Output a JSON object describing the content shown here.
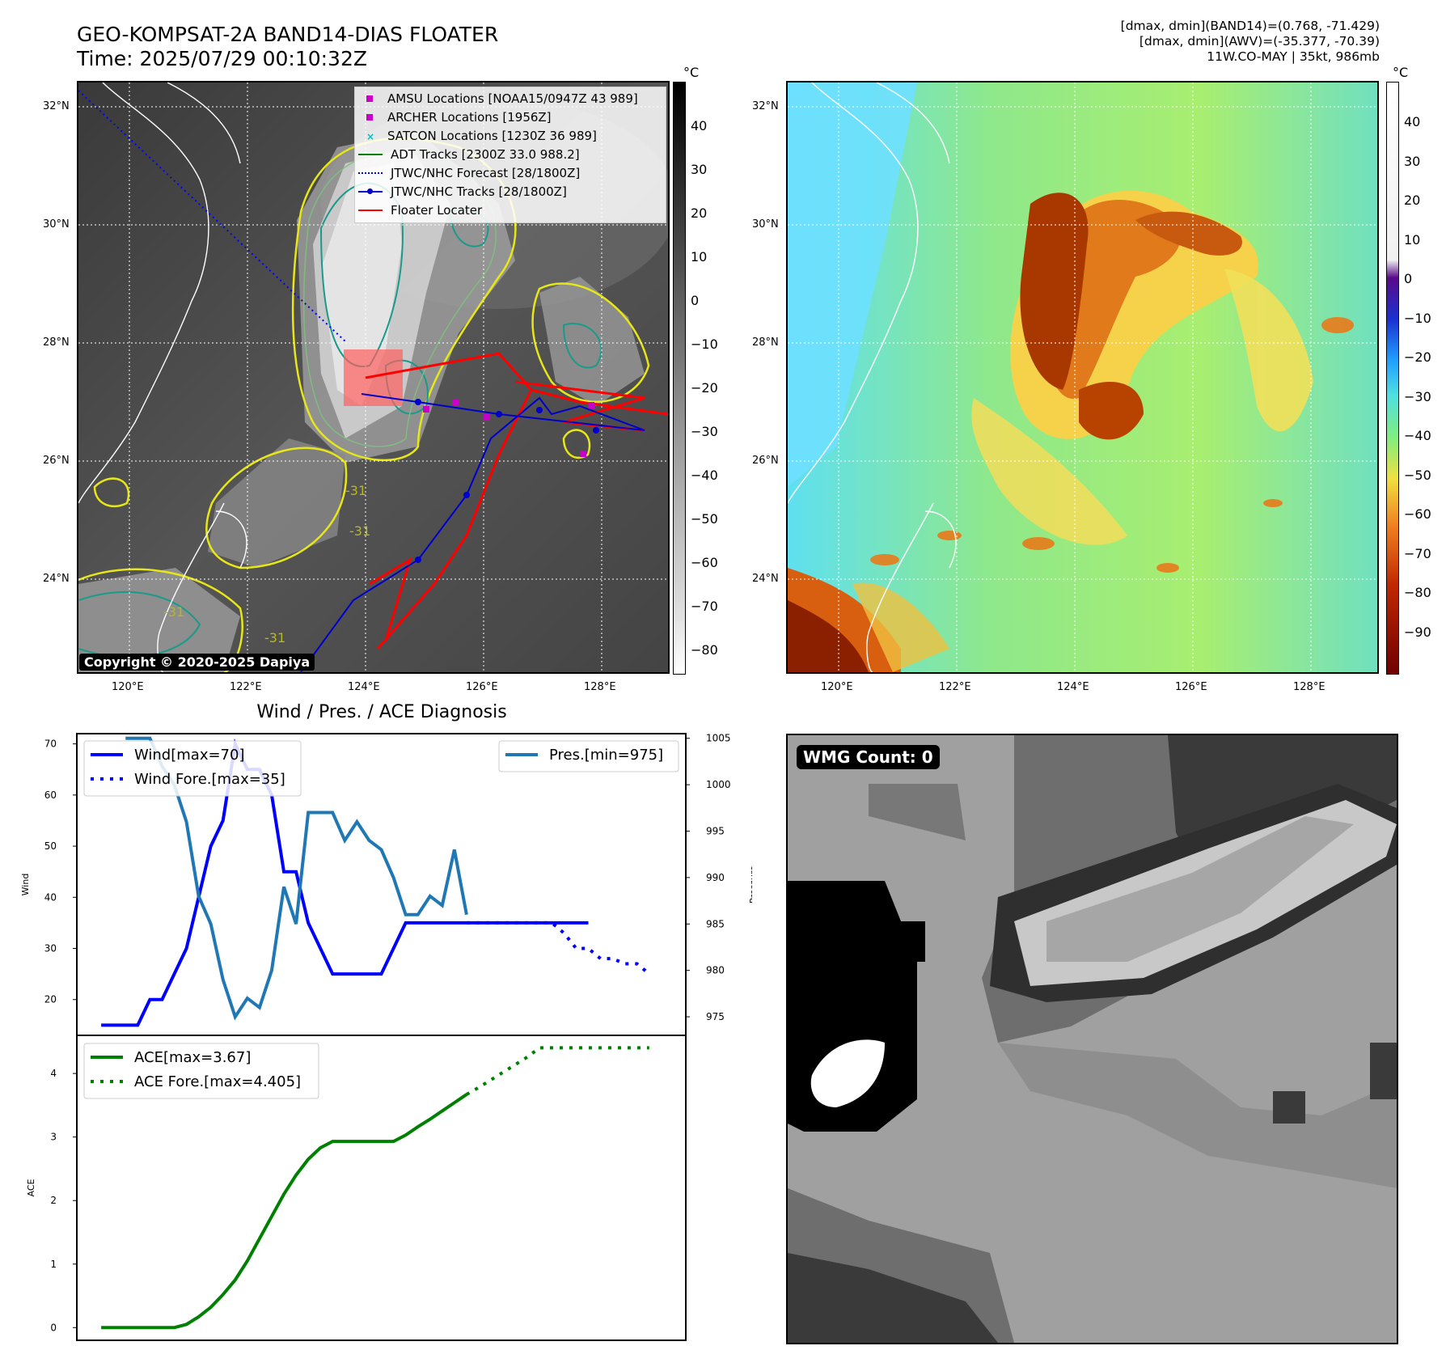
{
  "header": {
    "title_line1": "GEO-KOMPSAT-2A BAND14-DIAS FLOATER",
    "title_line2": "Time: 2025/07/29 00:10:32Z",
    "right_line1": "[dmax, dmin](BAND14)=(0.768, -71.429)",
    "right_line2": "[dmax, dmin](AWV)=(-35.377, -70.39)",
    "right_line3": "11W.CO-MAY | 35kt, 986mb"
  },
  "map": {
    "lat_labels": [
      "32°N",
      "30°N",
      "28°N",
      "26°N",
      "24°N"
    ],
    "lon_labels": [
      "120°E",
      "122°E",
      "124°E",
      "126°E",
      "128°E"
    ],
    "copyright": "Copyright © 2020-2025 Dapiya",
    "contour_labels": [
      "-31",
      "-31",
      "-31",
      "-31"
    ]
  },
  "legend": {
    "amsu": "AMSU Locations [NOAA15/0947Z 43 989]",
    "archer": "ARCHER Locations [1956Z]",
    "satcon": "SATCON Locations [1230Z 36 989]",
    "adt": "ADT Tracks [2300Z 33.0 988.2]",
    "forecast": "JTWC/NHC Forecast [28/1800Z]",
    "tracks": "JTWC/NHC Tracks [28/1800Z]",
    "floater": "Floater Locater"
  },
  "colorbar_gray": {
    "unit": "°C",
    "ticks": [
      "40",
      "30",
      "20",
      "10",
      "0",
      "−10",
      "−20",
      "−30",
      "−40",
      "−50",
      "−60",
      "−70",
      "−80"
    ]
  },
  "colorbar_color": {
    "unit": "°C",
    "ticks": [
      "40",
      "30",
      "20",
      "10",
      "0",
      "−10",
      "−20",
      "−30",
      "−40",
      "−50",
      "−60",
      "−70",
      "−80",
      "−90"
    ]
  },
  "wmg": {
    "label": "WMG Count: 0"
  },
  "colors": {
    "wind": "#0000ff",
    "pressure": "#1f77b4",
    "ace": "#008000",
    "floater": "#ff0000",
    "adt": "#008000",
    "amsu": "#bf00bf",
    "satcon": "#00bfbf"
  },
  "chart_data": [
    {
      "type": "line",
      "title": "Wind / Pres. / ACE Diagnosis",
      "ylabel": "Wind",
      "ylabel_right": "Pressure",
      "ylim": [
        13,
        72
      ],
      "ylim_right": [
        973,
        1005.5
      ],
      "yticks": [
        20,
        30,
        40,
        50,
        60,
        70
      ],
      "yticks_right": [
        975,
        980,
        985,
        990,
        995,
        1000,
        1005
      ],
      "legend_left": [
        "Wind[max=70]",
        "Wind Fore.[max=35]"
      ],
      "legend_right": [
        "Pres.[min=975]"
      ],
      "series": [
        {
          "name": "Wind[max=70]",
          "axis": "left",
          "x": [
            0,
            2,
            3,
            4,
            5,
            6,
            7,
            8,
            9,
            10,
            11,
            12,
            13,
            14,
            15,
            16,
            17,
            18,
            19,
            20,
            21,
            22,
            23,
            24,
            25,
            26,
            27,
            28,
            29,
            30,
            31,
            32,
            33,
            34,
            35,
            36,
            37,
            38,
            39,
            40
          ],
          "values": [
            15,
            15,
            15,
            20,
            20,
            25,
            30,
            40,
            50,
            55,
            70,
            65,
            65,
            60,
            45,
            45,
            35,
            30,
            25,
            25,
            25,
            25,
            25,
            30,
            35,
            35,
            35,
            35,
            35,
            35,
            35,
            35,
            35,
            35,
            35,
            35,
            35,
            35,
            35,
            35
          ]
        },
        {
          "name": "Wind Fore.[max=35]",
          "axis": "left",
          "style": "dotted",
          "x": [
            30,
            31,
            32,
            33,
            34,
            35,
            36,
            37,
            38,
            39,
            40,
            41,
            42,
            43,
            44,
            45
          ],
          "values": [
            35,
            35,
            35,
            35,
            35,
            35,
            35,
            35,
            33,
            30,
            30,
            28,
            28,
            27,
            27,
            25
          ]
        },
        {
          "name": "Pres.[min=975]",
          "axis": "right",
          "x": [
            2,
            3,
            4,
            5,
            6,
            7,
            8,
            9,
            10,
            11,
            12,
            13,
            14,
            15,
            16,
            17,
            18,
            19,
            20,
            21,
            22,
            23,
            24,
            25,
            26,
            27,
            28,
            29,
            30
          ],
          "values": [
            1005,
            1005,
            1005,
            1002,
            1000,
            996,
            988,
            985,
            979,
            975,
            977,
            976,
            980,
            989,
            985,
            997,
            997,
            997,
            994,
            996,
            994,
            993,
            990,
            986,
            986,
            988,
            987,
            993,
            986
          ]
        }
      ]
    },
    {
      "type": "line",
      "ylabel": "ACE",
      "ylim": [
        -0.2,
        4.6
      ],
      "yticks": [
        0,
        1,
        2,
        3,
        4
      ],
      "legend": [
        "ACE[max=3.67]",
        "ACE Fore.[max=4.405]"
      ],
      "series": [
        {
          "name": "ACE[max=3.67]",
          "x": [
            0,
            1,
            2,
            3,
            4,
            5,
            6,
            7,
            8,
            9,
            10,
            11,
            12,
            13,
            14,
            15,
            16,
            17,
            18,
            19,
            20,
            21,
            22,
            23,
            24,
            25,
            26,
            27,
            28,
            29,
            30
          ],
          "values": [
            0,
            0,
            0,
            0,
            0,
            0,
            0,
            0.05,
            0.17,
            0.32,
            0.52,
            0.75,
            1.05,
            1.4,
            1.75,
            2.1,
            2.4,
            2.65,
            2.83,
            2.93,
            2.93,
            2.93,
            2.93,
            2.93,
            2.93,
            3.03,
            3.16,
            3.28,
            3.41,
            3.54,
            3.67
          ]
        },
        {
          "name": "ACE Fore.[max=4.405]",
          "style": "dotted",
          "x": [
            30,
            31,
            32,
            33,
            34,
            35,
            36,
            37,
            38,
            39,
            40,
            41,
            42,
            43,
            44,
            45
          ],
          "values": [
            3.67,
            3.78,
            3.9,
            4.02,
            4.14,
            4.26,
            4.405,
            4.405,
            4.405,
            4.405,
            4.405,
            4.405,
            4.405,
            4.405,
            4.405,
            4.405
          ]
        }
      ]
    }
  ]
}
